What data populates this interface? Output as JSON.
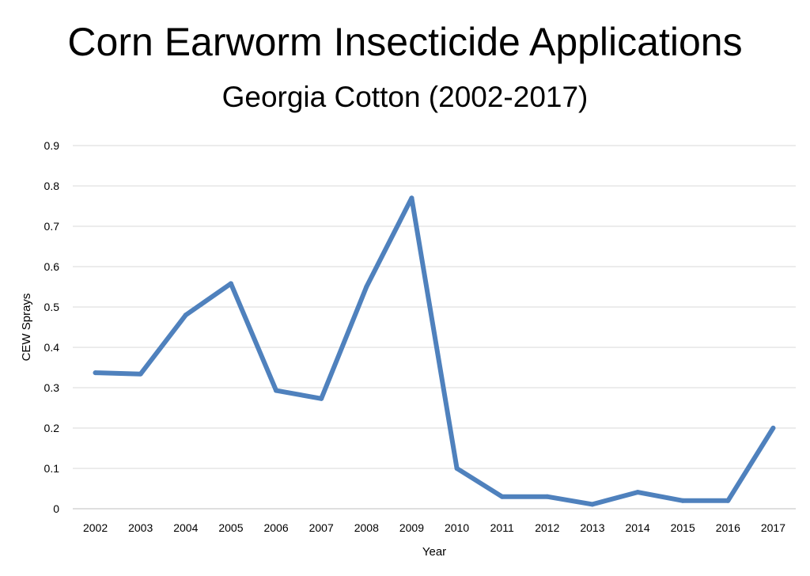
{
  "chart_data": {
    "type": "line",
    "title": "Corn Earworm Insecticide Applications",
    "subtitle": "Georgia Cotton (2002-2017)",
    "xlabel": "Year",
    "ylabel": "CEW Sprays",
    "categories": [
      "2002",
      "2003",
      "2004",
      "2005",
      "2006",
      "2007",
      "2008",
      "2009",
      "2010",
      "2011",
      "2012",
      "2013",
      "2014",
      "2015",
      "2016",
      "2017"
    ],
    "series": [
      {
        "values": [
          0.337,
          0.334,
          0.48,
          0.558,
          0.293,
          0.273,
          0.55,
          0.77,
          0.1,
          0.03,
          0.03,
          0.011,
          0.041,
          0.02,
          0.02,
          0.2
        ]
      }
    ],
    "ylim": [
      0,
      0.9
    ],
    "yticks": [
      "0",
      "0.1",
      "0.2",
      "0.3",
      "0.4",
      "0.5",
      "0.6",
      "0.7",
      "0.8",
      "0.9"
    ],
    "grid": true,
    "line_color": "#4f81bd"
  }
}
